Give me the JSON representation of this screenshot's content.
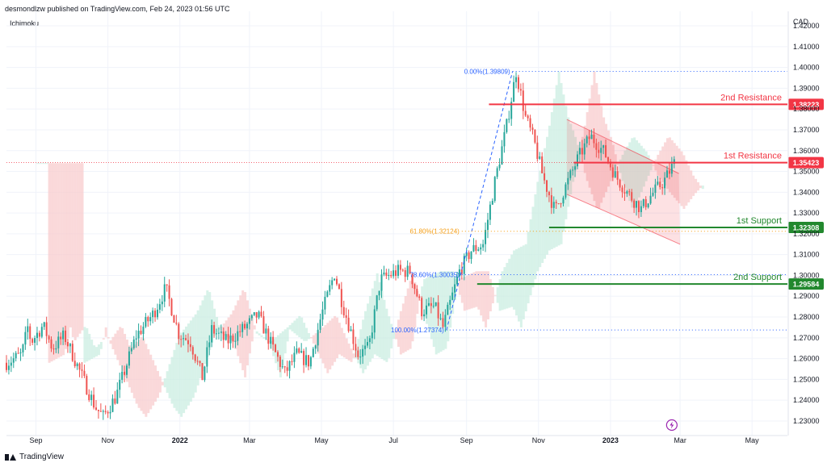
{
  "header": {
    "text": "desmondlzw published on TradingView.com, Feb 24, 2023 01:56 UTC"
  },
  "indicator": {
    "label": "Ichimoku"
  },
  "footer": {
    "brand": "TradingView"
  },
  "chart_data": {
    "type": "candlestick",
    "symbol_axis_label": "CAD",
    "currency_unit": "CAD",
    "y_ticks": [
      1.23,
      1.24,
      1.25,
      1.26,
      1.27,
      1.28,
      1.29,
      1.3,
      1.31,
      1.32,
      1.33,
      1.34,
      1.35,
      1.36,
      1.37,
      1.38,
      1.39,
      1.4,
      1.41,
      1.42
    ],
    "y_tick_labels": [
      "1.23000",
      "1.24000",
      "1.25000",
      "1.26000",
      "1.27000",
      "1.28000",
      "1.29000",
      "1.30000",
      "1.31000",
      "1.32000",
      "1.33000",
      "1.34000",
      "1.35000",
      "1.36000",
      "1.37000",
      "1.38000",
      "1.39000",
      "1.40000",
      "1.41000",
      "1.42000"
    ],
    "x_tick_labels": [
      "Sep",
      "Nov",
      "2022",
      "Mar",
      "May",
      "Jul",
      "Sep",
      "Nov",
      "2023",
      "Mar",
      "May"
    ],
    "x_tick_dates": [
      "2021-09-01",
      "2021-11-01",
      "2022-01-01",
      "2022-03-01",
      "2022-05-01",
      "2022-07-01",
      "2022-09-01",
      "2022-11-01",
      "2023-01-01",
      "2023-03-01",
      "2023-05-01"
    ],
    "x_range": [
      "2021-08-07",
      "2023-05-31"
    ],
    "y_range": [
      1.223,
      1.427
    ],
    "price_path": [
      [
        "2021-08-07",
        1.258
      ],
      [
        "2021-08-20",
        1.262
      ],
      [
        "2021-08-25",
        1.275
      ],
      [
        "2021-08-28",
        1.268
      ],
      [
        "2021-09-07",
        1.276
      ],
      [
        "2021-09-15",
        1.265
      ],
      [
        "2021-09-25",
        1.271
      ],
      [
        "2021-10-05",
        1.258
      ],
      [
        "2021-10-21",
        1.237
      ],
      [
        "2021-10-28",
        1.232
      ],
      [
        "2021-11-08",
        1.242
      ],
      [
        "2021-11-25",
        1.271
      ],
      [
        "2021-12-10",
        1.282
      ],
      [
        "2021-12-20",
        1.294
      ],
      [
        "2021-12-31",
        1.272
      ],
      [
        "2022-01-10",
        1.268
      ],
      [
        "2022-01-20",
        1.251
      ],
      [
        "2022-01-28",
        1.274
      ],
      [
        "2022-02-10",
        1.268
      ],
      [
        "2022-02-25",
        1.275
      ],
      [
        "2022-03-08",
        1.281
      ],
      [
        "2022-03-20",
        1.266
      ],
      [
        "2022-03-31",
        1.253
      ],
      [
        "2022-04-10",
        1.262
      ],
      [
        "2022-04-21",
        1.258
      ],
      [
        "2022-05-01",
        1.281
      ],
      [
        "2022-05-12",
        1.301
      ],
      [
        "2022-05-20",
        1.284
      ],
      [
        "2022-06-01",
        1.262
      ],
      [
        "2022-06-10",
        1.265
      ],
      [
        "2022-06-20",
        1.298
      ],
      [
        "2022-07-01",
        1.301
      ],
      [
        "2022-07-05",
        1.302
      ],
      [
        "2022-07-15",
        1.302
      ],
      [
        "2022-07-25",
        1.283
      ],
      [
        "2022-08-05",
        1.285
      ],
      [
        "2022-08-12",
        1.275
      ],
      [
        "2022-08-26",
        1.302
      ],
      [
        "2022-09-05",
        1.312
      ],
      [
        "2022-09-15",
        1.315
      ],
      [
        "2022-09-25",
        1.345
      ],
      [
        "2022-10-05",
        1.372
      ],
      [
        "2022-10-13",
        1.398
      ],
      [
        "2022-10-21",
        1.376
      ],
      [
        "2022-10-28",
        1.365
      ],
      [
        "2022-11-05",
        1.347
      ],
      [
        "2022-11-15",
        1.331
      ],
      [
        "2022-11-25",
        1.344
      ],
      [
        "2022-12-05",
        1.357
      ],
      [
        "2022-12-15",
        1.367
      ],
      [
        "2022-12-27",
        1.359
      ],
      [
        "2023-01-05",
        1.348
      ],
      [
        "2023-01-15",
        1.34
      ],
      [
        "2023-01-27",
        1.332
      ],
      [
        "2023-02-05",
        1.339
      ],
      [
        "2023-02-15",
        1.345
      ],
      [
        "2023-02-24",
        1.354
      ]
    ],
    "channel": {
      "upper": [
        [
          "2022-11-25",
          1.375
        ],
        [
          "2023-02-28",
          1.349
        ]
      ],
      "lower": [
        [
          "2022-11-25",
          1.339
        ],
        [
          "2023-03-01",
          1.315
        ]
      ]
    },
    "fibonacci": [
      {
        "label": "0.00%(1.39809)",
        "price": 1.39809,
        "color": "#2962ff",
        "start": "2022-10-10"
      },
      {
        "label": "61.80%(1.32124)",
        "price": 1.32124,
        "color": "#f59d12",
        "start": "2022-08-28"
      },
      {
        "label": "78.60%(1.30035)",
        "price": 1.30035,
        "color": "#2962ff",
        "start": "2022-08-28"
      },
      {
        "label": "100.00%(1.27374)",
        "price": 1.27374,
        "color": "#2962ff",
        "start": "2022-08-15"
      }
    ],
    "levels": [
      {
        "name": "2nd Resistance",
        "price": 1.38223,
        "price_label": "1.38223",
        "color": "#f23645",
        "start": "2022-09-20"
      },
      {
        "name": "1st Resistance",
        "price": 1.35423,
        "price_label": "1.35423",
        "color": "#f23645",
        "start": "2022-12-01"
      },
      {
        "name": "1st Support",
        "price": 1.32308,
        "price_label": "1.32308",
        "color": "#22882e",
        "start": "2022-11-10"
      },
      {
        "name": "2nd Support",
        "price": 1.29584,
        "price_label": "1.29584",
        "color": "#22882e",
        "start": "2022-09-10"
      }
    ],
    "last_price": 1.35423,
    "colors": {
      "up": "#26a69a",
      "down": "#ef5350",
      "grid": "#f0f3fa",
      "text": "#131722",
      "cloud_red": "#f8c9cb",
      "cloud_green": "#c7ecdf"
    },
    "grid": true,
    "price_scale_position": "right",
    "event_icon": "lightning-icon"
  }
}
